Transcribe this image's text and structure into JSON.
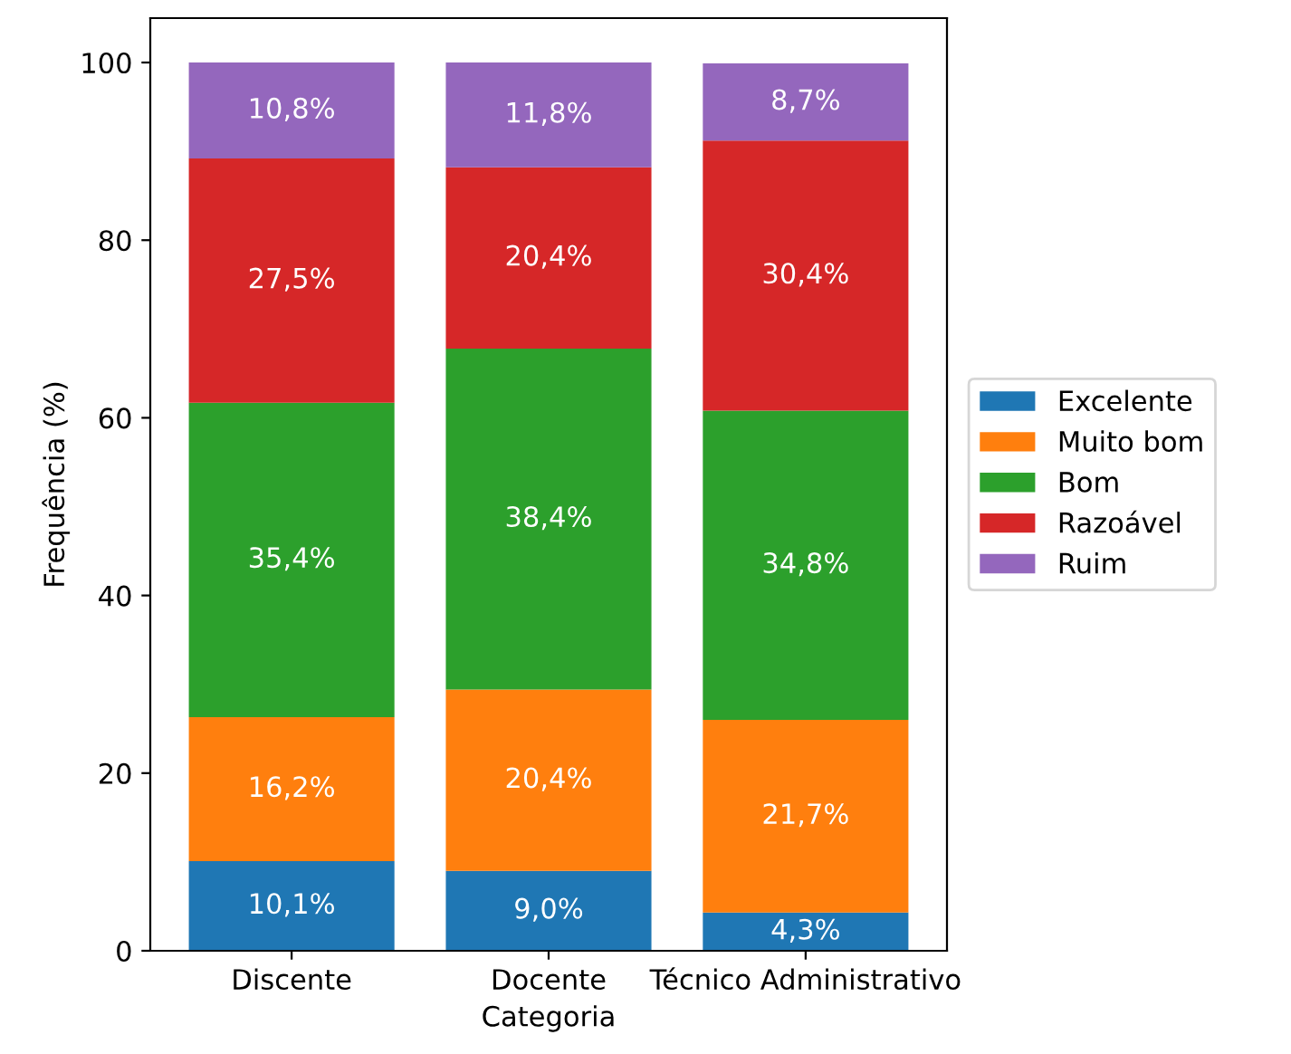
{
  "chart_data": {
    "type": "bar",
    "stacked": true,
    "xlabel": "Categoria",
    "ylabel": "Frequência (%)",
    "categories": [
      "Discente",
      "Docente",
      "Técnico Administrativo"
    ],
    "ylim": [
      0,
      105
    ],
    "yticks": [
      0,
      20,
      40,
      60,
      80,
      100
    ],
    "grid": false,
    "legend": "right",
    "series": [
      {
        "name": "Excelente",
        "color": "#1f77b4",
        "values": [
          10.1,
          9.0,
          4.3
        ],
        "value_labels": [
          "10,1%",
          "9,0%",
          "4,3%"
        ]
      },
      {
        "name": "Muito bom",
        "color": "#ff7f0e",
        "values": [
          16.2,
          20.4,
          21.7
        ],
        "value_labels": [
          "16,2%",
          "20,4%",
          "21,7%"
        ]
      },
      {
        "name": "Bom",
        "color": "#2ca02c",
        "values": [
          35.4,
          38.4,
          34.8
        ],
        "value_labels": [
          "35,4%",
          "38,4%",
          "34,8%"
        ]
      },
      {
        "name": "Razoável",
        "color": "#d62728",
        "values": [
          27.5,
          20.4,
          30.4
        ],
        "value_labels": [
          "27,5%",
          "20,4%",
          "30,4%"
        ]
      },
      {
        "name": "Ruim",
        "color": "#9467bd",
        "values": [
          10.8,
          11.8,
          8.7
        ],
        "value_labels": [
          "10,8%",
          "11,8%",
          "8,7%"
        ]
      }
    ]
  }
}
